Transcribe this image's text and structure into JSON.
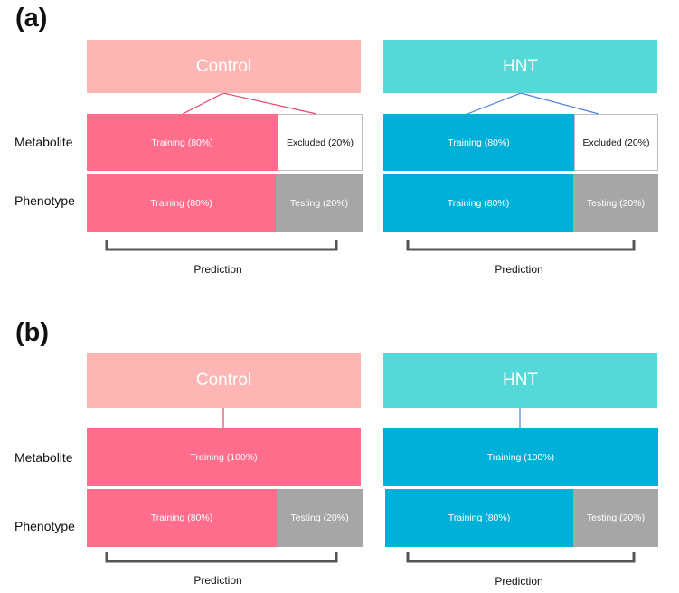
{
  "colors": {
    "control_header": "#fdb6b3",
    "hnt_header": "#55d9d8",
    "control_block": "#ff6d8d",
    "hnt_block": "#00b0d9",
    "testing": "#a6a6a6",
    "control_line": "#e0456a",
    "hnt_line": "#4a7fe0",
    "bracket": "#555555"
  },
  "panel_a": {
    "label": "(a)",
    "row_labels": {
      "metabolite": "Metabolite",
      "phenotype": "Phenotype"
    },
    "control": {
      "header": "Control",
      "metabolite": {
        "training": "Training (80%)",
        "excluded": "Excluded (20%)"
      },
      "phenotype": {
        "training": "Training (80%)",
        "testing": "Testing (20%)"
      },
      "prediction": "Prediction"
    },
    "hnt": {
      "header": "HNT",
      "metabolite": {
        "training": "Training (80%)",
        "excluded": "Excluded (20%)"
      },
      "phenotype": {
        "training": "Training (80%)",
        "testing": "Testing (20%)"
      },
      "prediction": "Prediction"
    }
  },
  "panel_b": {
    "label": "(b)",
    "row_labels": {
      "metabolite": "Metabolite",
      "phenotype": "Phenotype"
    },
    "control": {
      "header": "Control",
      "metabolite": {
        "training": "Training (100%)"
      },
      "phenotype": {
        "training": "Training (80%)",
        "testing": "Testing (20%)"
      },
      "prediction": "Prediction"
    },
    "hnt": {
      "header": "HNT",
      "metabolite": {
        "training": "Training (100%)"
      },
      "phenotype": {
        "training": "Training (80%)",
        "testing": "Testing (20%)"
      },
      "prediction": "Prediction"
    }
  }
}
